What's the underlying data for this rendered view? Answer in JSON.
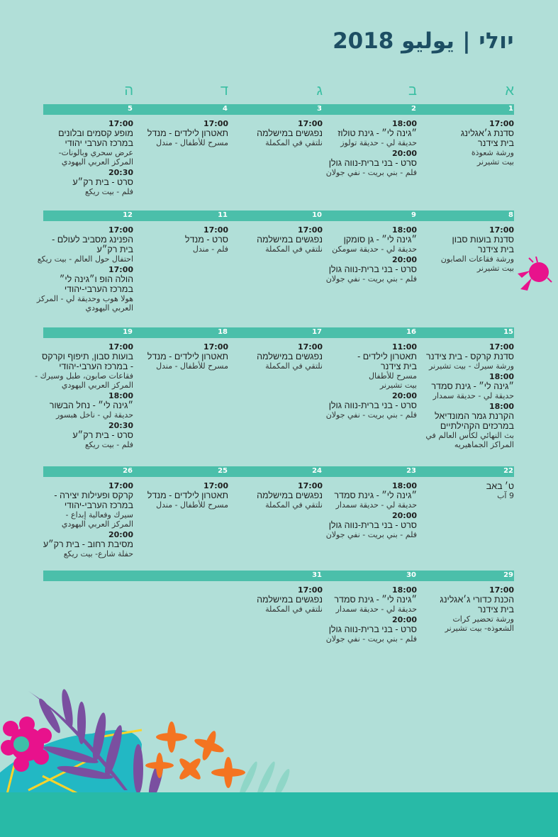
{
  "title": "יולי | يوليو 2018",
  "colors": {
    "background": "#b1dfd8",
    "bar": "#4bbfaa",
    "title": "#1d4e63",
    "day_letters": "#3bbfa3",
    "bottom_band": "#28baa7"
  },
  "day_letters": [
    "א",
    "ב",
    "ג",
    "ד",
    "ה"
  ],
  "weeks": [
    {
      "days": [
        {
          "num": "1",
          "events": [
            {
              "time": "17:00",
              "he": "סדנת ג׳אגלינג\nבית צידנר",
              "ar": "ورشة شعوذة\nبيت تشيرنر"
            }
          ]
        },
        {
          "num": "2",
          "events": [
            {
              "time": "18:00",
              "he": "״גינה לי״ - גינת טולוז",
              "ar": "حديقة لي - حديقة تولوز"
            },
            {
              "time": "20:00",
              "he": "סרט - בני ברית-נווה גולן",
              "ar": "فلم - بني بريت - نفي جولان"
            }
          ]
        },
        {
          "num": "3",
          "events": [
            {
              "time": "17:00",
              "he": "נפגשים במישלמה",
              "ar": "نلتقي في المكملة"
            }
          ]
        },
        {
          "num": "4",
          "events": [
            {
              "time": "17:00",
              "he": "תאטרון לילדים - מנדל",
              "ar": "مسرح للأطفال - مندل"
            }
          ]
        },
        {
          "num": "5",
          "events": [
            {
              "time": "17:00",
              "he": "מופע קסמים ובלונים\nבמרכז הערבי יהודי",
              "ar": "عرض سحري وبالونات-\nالمركز العربي اليهودي"
            },
            {
              "time": "20:30",
              "he": "סרט - בית רק״ע",
              "ar": "فلم - بيت ريكع"
            }
          ]
        }
      ]
    },
    {
      "days": [
        {
          "num": "8",
          "events": [
            {
              "time": "17:00",
              "he": "סדנת בועות סבון\nבית צידנר",
              "ar": "ورشة فقاعات الصابون\nبيت تشيرنر"
            }
          ]
        },
        {
          "num": "9",
          "events": [
            {
              "time": "18:00",
              "he": "״גינה לי״ - גן סומקן",
              "ar": "حديقة لي - حديقة سومكن"
            },
            {
              "time": "20:00",
              "he": "סרט - בני ברית-נווה גולן",
              "ar": "فلم - بني بريت - نفي جولان"
            }
          ]
        },
        {
          "num": "10",
          "events": [
            {
              "time": "17:00",
              "he": "נפגשים במישלמה",
              "ar": "نلتقي في المكملة"
            }
          ]
        },
        {
          "num": "11",
          "events": [
            {
              "time": "17:00",
              "he": "סרט - מנדל",
              "ar": "فلم - مندل"
            }
          ]
        },
        {
          "num": "12",
          "events": [
            {
              "time": "17:00",
              "he": "הפנינג מסביב לעולם -\nבית רק״ע",
              "ar": "احتفال حول العالم - بيت ريكع"
            },
            {
              "time": "17:00",
              "he": "הולה הופ ו״גינה לי״\nבמרכז הערבי-יהודי",
              "ar": "هولا هوب وحديقة لي - المركز\nالعربي اليهودي"
            }
          ]
        }
      ]
    },
    {
      "days": [
        {
          "num": "15",
          "events": [
            {
              "time": "17:00",
              "he": "סדנת קרקס - בית צידנר",
              "ar": "ورشة سيرك - بيت تشيرنر"
            },
            {
              "time": "18:00",
              "he": "״גינה לי״ - גינת סמדר",
              "ar": "حديقة لي - حديقة سمدار"
            },
            {
              "time": "18:00",
              "he": "הקרנת גמר המונדיאל\nבמרכזים הקהילתיים",
              "ar": "بث النهائي لكأس العالم في\nالمراكز الجماهيريه"
            }
          ]
        },
        {
          "num": "16",
          "events": [
            {
              "time": "11:00",
              "he": "תאטרון לילדים -\nבית צידנר",
              "ar": "مسرح للأطفال\nبيت تشيرنر"
            },
            {
              "time": "20:00",
              "he": "סרט - בני ברית-נווה גולן",
              "ar": "فلم - بني بريت - نفي جولان"
            }
          ]
        },
        {
          "num": "17",
          "events": [
            {
              "time": "17:00",
              "he": "נפגשים במישלמה",
              "ar": "نلتقي في المكملة"
            }
          ]
        },
        {
          "num": "18",
          "events": [
            {
              "time": "17:00",
              "he": "תאטרון לילדים - מנדל",
              "ar": "مسرح للأطفال - مندل"
            }
          ]
        },
        {
          "num": "19",
          "events": [
            {
              "time": "17:00",
              "he": "בועות סבון, תיפוף וקרקס\n- במרכז הערבי-יהודי",
              "ar": "فقاعات صابون، طبل وسيرك -\nالمركز العربي اليهودي"
            },
            {
              "time": "18:00",
              "he": "״גינה לי״ - נחל הבשור",
              "ar": "حديقة لي - ناخل هبسور"
            },
            {
              "time": "20:30",
              "he": "סרט - בית רק״ע",
              "ar": "فلم - بيت ريكع"
            }
          ]
        }
      ]
    },
    {
      "days": [
        {
          "num": "22",
          "events": [
            {
              "time": "",
              "he": "ט׳ באב",
              "ar": "9 آب"
            }
          ]
        },
        {
          "num": "23",
          "events": [
            {
              "time": "18:00",
              "he": "״גינה לי״ - גינת סמדר",
              "ar": "حديقة لي - حديقة سمدار"
            },
            {
              "time": "20:00",
              "he": "סרט - בני ברית-נווה גולן",
              "ar": "فلم - بني بريت - نفي جولان"
            }
          ]
        },
        {
          "num": "24",
          "events": [
            {
              "time": "17:00",
              "he": "נפגשים במישלמה",
              "ar": "نلتقي في المكملة"
            }
          ]
        },
        {
          "num": "25",
          "events": [
            {
              "time": "17:00",
              "he": "תאטרון לילדים - מנדל",
              "ar": "مسرح للأطفال - مندل"
            }
          ]
        },
        {
          "num": "26",
          "events": [
            {
              "time": "17:00",
              "he": "קרקס ופעילות יצירה -\nבמרכז הערבי-יהודי",
              "ar": "سيرك وفعالية إبداع -\nالمركز العربي اليهودي"
            },
            {
              "time": "20:00",
              "he": "מסיבת רחוב - בית רק״ע",
              "ar": "حفلة شارع- بيت ريكع"
            }
          ]
        }
      ]
    },
    {
      "days": [
        {
          "num": "29",
          "events": [
            {
              "time": "17:00",
              "he": "הכנת כדורי ג׳אגלינג\nבית צידנר",
              "ar": "ورشة تحضير كرات\nالشعوذه- بيت تشيرنر"
            }
          ]
        },
        {
          "num": "30",
          "events": [
            {
              "time": "18:00",
              "he": "״גינה לי״ - גינת סמדר",
              "ar": "حديقة لي - حديقة سمدار"
            },
            {
              "time": "20:00",
              "he": "סרט - בני ברית-נווה גולן",
              "ar": "فلم - بني بريت - نفي جولان"
            }
          ]
        },
        {
          "num": "31",
          "events": [
            {
              "time": "17:00",
              "he": "נפגשים במישלמה",
              "ar": "نلتقي في المكملة"
            }
          ]
        },
        {
          "num": "",
          "events": []
        },
        {
          "num": "",
          "events": []
        }
      ]
    }
  ]
}
